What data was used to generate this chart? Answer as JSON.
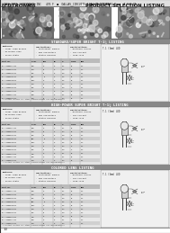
{
  "page_bg": "#c8c8c8",
  "white": "#ffffff",
  "light_gray": "#e0e0e0",
  "mid_gray": "#aaaaaa",
  "dark_gray": "#666666",
  "black": "#111111",
  "header_bg": "#999999",
  "section_header_bg": "#888888",
  "photo_colors": [
    "#787878",
    "#909090",
    "#808080"
  ],
  "diagram_bg": "#d8d8d8",
  "table_row_even": "#e8e8e8",
  "table_row_odd": "#d0d0d0",
  "border": "#444444"
}
